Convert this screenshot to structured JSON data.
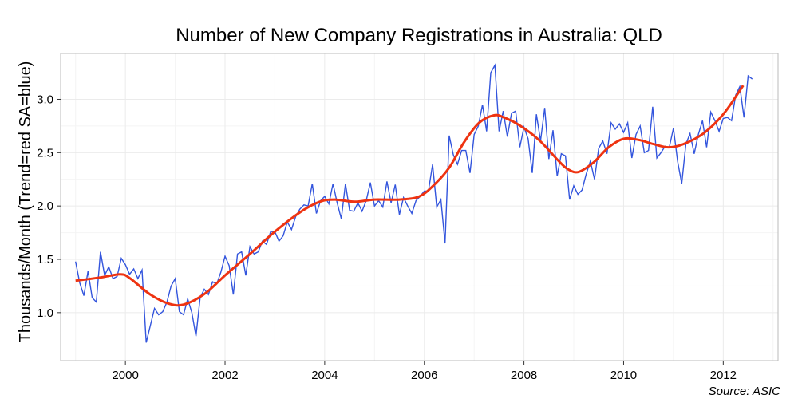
{
  "chart_data": {
    "type": "line",
    "title": "Number of New Company Registrations in Australia: QLD",
    "xlabel": "",
    "ylabel": "Thousands/Month (Trend=red SA=blue)",
    "source": "Source: ASIC",
    "xlim": [
      1998.7,
      2013.1
    ],
    "ylim": [
      0.55,
      3.43
    ],
    "x_ticks": [
      2000,
      2002,
      2004,
      2006,
      2008,
      2010,
      2012
    ],
    "x_tick_labels": [
      "2000",
      "2002",
      "2004",
      "2006",
      "2008",
      "2010",
      "2012"
    ],
    "y_ticks": [
      1.0,
      1.5,
      2.0,
      2.5,
      3.0
    ],
    "y_tick_labels": [
      "1.0",
      "1.5",
      "2.0",
      "2.5",
      "3.0"
    ],
    "grid": true,
    "colors": {
      "sa": "#3355dd",
      "trend": "#ee3311",
      "panel_border": "#bbbbbb",
      "grid": "#ebebeb"
    },
    "series": [
      {
        "name": "SA",
        "x_start": 1999.0,
        "x_step": 0.08333,
        "values": [
          1.48,
          1.28,
          1.16,
          1.39,
          1.14,
          1.1,
          1.57,
          1.35,
          1.43,
          1.32,
          1.34,
          1.51,
          1.45,
          1.36,
          1.41,
          1.32,
          1.4,
          0.72,
          0.88,
          1.04,
          0.98,
          1.01,
          1.1,
          1.25,
          1.32,
          1.01,
          0.98,
          1.13,
          1.0,
          0.78,
          1.14,
          1.22,
          1.17,
          1.29,
          1.27,
          1.38,
          1.53,
          1.44,
          1.17,
          1.55,
          1.57,
          1.35,
          1.62,
          1.55,
          1.57,
          1.67,
          1.64,
          1.76,
          1.76,
          1.67,
          1.72,
          1.85,
          1.78,
          1.9,
          1.97,
          2.01,
          2.0,
          2.21,
          1.93,
          2.05,
          2.09,
          2.02,
          2.21,
          2.03,
          1.88,
          2.21,
          1.96,
          1.95,
          2.03,
          1.95,
          2.05,
          2.22,
          2.0,
          2.05,
          1.99,
          2.23,
          2.03,
          2.2,
          1.92,
          2.08,
          2.0,
          1.93,
          2.05,
          2.09,
          2.14,
          2.14,
          2.39,
          1.99,
          2.06,
          1.65,
          2.66,
          2.48,
          2.39,
          2.52,
          2.52,
          2.31,
          2.67,
          2.75,
          2.95,
          2.7,
          3.25,
          3.32,
          2.7,
          2.89,
          2.65,
          2.87,
          2.89,
          2.55,
          2.74,
          2.63,
          2.31,
          2.86,
          2.61,
          2.92,
          2.44,
          2.71,
          2.28,
          2.49,
          2.47,
          2.06,
          2.19,
          2.11,
          2.15,
          2.3,
          2.42,
          2.25,
          2.54,
          2.61,
          2.49,
          2.78,
          2.72,
          2.77,
          2.69,
          2.78,
          2.45,
          2.67,
          2.75,
          2.5,
          2.52,
          2.93,
          2.45,
          2.5,
          2.56,
          2.55,
          2.73,
          2.42,
          2.21,
          2.58,
          2.68,
          2.49,
          2.67,
          2.8,
          2.55,
          2.88,
          2.8,
          2.7,
          2.82,
          2.83,
          2.8,
          3.04,
          3.12,
          2.83,
          3.22,
          3.19
        ]
      },
      {
        "name": "Trend",
        "x": [
          1999.0,
          1999.5,
          1999.9,
          2000.1,
          2000.5,
          2000.9,
          2001.2,
          2001.6,
          2002.0,
          2002.5,
          2003.0,
          2003.5,
          2003.9,
          2004.2,
          2004.6,
          2005.0,
          2005.5,
          2005.9,
          2006.2,
          2006.5,
          2006.8,
          2007.1,
          2007.4,
          2007.6,
          2007.9,
          2008.3,
          2008.7,
          2008.9,
          2009.1,
          2009.4,
          2009.7,
          2010.0,
          2010.3,
          2010.6,
          2010.9,
          2011.2,
          2011.6,
          2012.0,
          2012.4
        ],
        "values": [
          1.3,
          1.33,
          1.36,
          1.32,
          1.17,
          1.08,
          1.08,
          1.18,
          1.35,
          1.55,
          1.76,
          1.94,
          2.04,
          2.06,
          2.04,
          2.06,
          2.06,
          2.09,
          2.2,
          2.36,
          2.6,
          2.78,
          2.85,
          2.83,
          2.76,
          2.62,
          2.42,
          2.34,
          2.32,
          2.41,
          2.55,
          2.63,
          2.62,
          2.58,
          2.55,
          2.58,
          2.68,
          2.86,
          3.13
        ]
      }
    ]
  }
}
